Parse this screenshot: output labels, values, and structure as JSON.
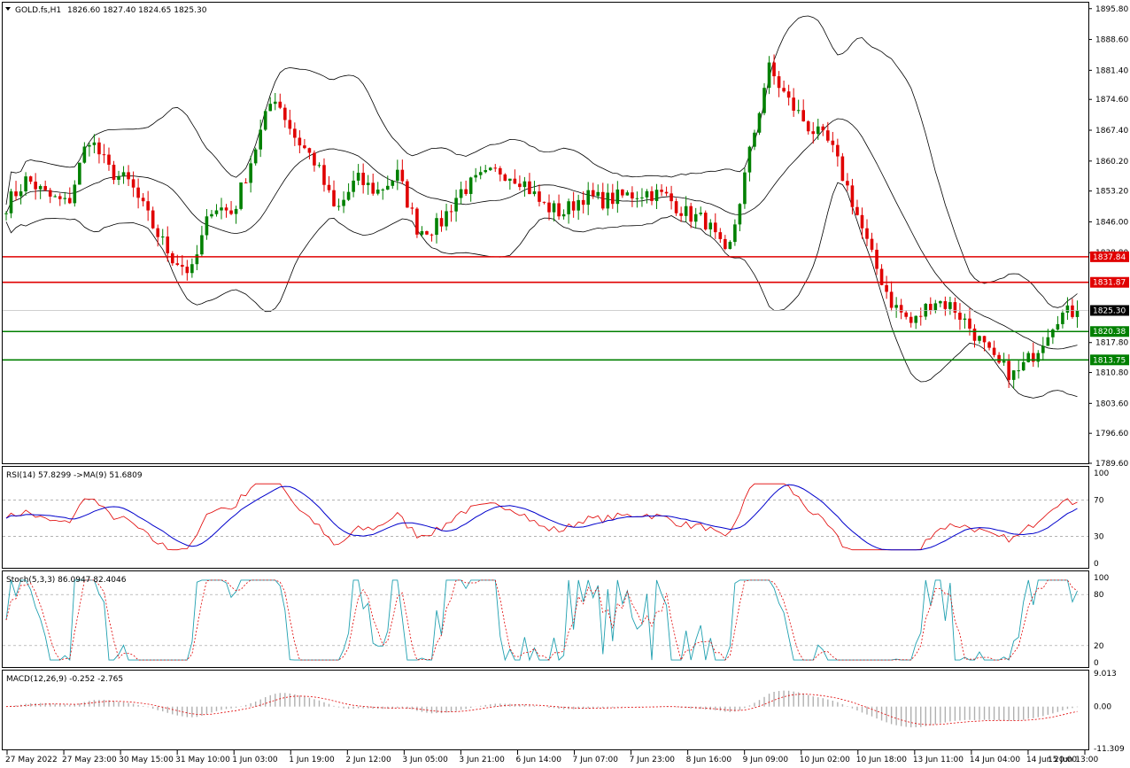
{
  "header": {
    "symbol": "GOLD.fs,H1",
    "ohlc": "1826.60 1827.40 1824.65 1825.30"
  },
  "chart_data": {
    "type": "candlestick",
    "symbol": "GOLD.fs",
    "timeframe": "H1",
    "price_axis": {
      "ticks": [
        1895.8,
        1888.6,
        1881.4,
        1874.6,
        1867.4,
        1860.2,
        1853.2,
        1846.0,
        1838.8,
        1817.8,
        1810.8,
        1803.6,
        1796.6,
        1789.6
      ],
      "min": 1789.6,
      "max": 1897.2
    },
    "current_price": "1825.30",
    "levels": [
      {
        "value": 1837.84,
        "label": "1837.84",
        "color": "#e00000"
      },
      {
        "value": 1831.87,
        "label": "1831.87",
        "color": "#e00000"
      },
      {
        "value": 1820.38,
        "label": "1820.38",
        "color": "#008000"
      },
      {
        "value": 1813.75,
        "label": "1813.75",
        "color": "#008000"
      }
    ],
    "time_labels": [
      "27 May 2022",
      "27 May 23:00",
      "30 May 15:00",
      "31 May 10:00",
      "1 Jun 03:00",
      "1 Jun 19:00",
      "2 Jun 12:00",
      "3 Jun 05:00",
      "3 Jun 21:00",
      "6 Jun 14:00",
      "7 Jun 07:00",
      "7 Jun 23:00",
      "8 Jun 16:00",
      "9 Jun 09:00",
      "10 Jun 02:00",
      "10 Jun 18:00",
      "13 Jun 11:00",
      "14 Jun 04:00",
      "14 Jun 20:00",
      "15 Jun 13:00"
    ],
    "close_path": [
      1850,
      1856,
      1852,
      1850,
      1866,
      1858,
      1855,
      1846,
      1838,
      1834,
      1850,
      1848,
      1862,
      1876,
      1866,
      1860,
      1848,
      1856,
      1853,
      1857,
      1844,
      1845,
      1853,
      1856,
      1858,
      1856,
      1850,
      1848,
      1852,
      1851,
      1852,
      1853,
      1852,
      1848,
      1846,
      1837,
      1860,
      1882,
      1874,
      1868,
      1864,
      1852,
      1838,
      1827,
      1822,
      1828,
      1826,
      1820,
      1813,
      1810,
      1816,
      1824,
      1825.3
    ],
    "rsi": {
      "label": "RSI(14) 57.8299 ->MA(9) 51.6809",
      "ticks": [
        "100",
        "70",
        "30",
        "0"
      ],
      "levels": [
        70,
        30
      ]
    },
    "stoch": {
      "label": "Stoch(5,3,3) 86.0947 82.4046",
      "ticks": [
        "100",
        "80",
        "20",
        "0"
      ],
      "levels": [
        80,
        20
      ]
    },
    "macd": {
      "label": "MACD(12,26,9) -0.252 -2.765",
      "ticks": [
        "9.013",
        "0.00",
        "-11.309"
      ],
      "min": -11.309,
      "max": 9.013
    }
  },
  "colors": {
    "bull": "#008000",
    "bear": "#e00000",
    "band": "#000000",
    "rsi": "#e00000",
    "rsi_ma": "#0000cc",
    "stoch_k": "#20a0b0",
    "stoch_d": "#e00000",
    "macd_hist": "#b0b0b0",
    "macd_signal": "#e00000"
  }
}
